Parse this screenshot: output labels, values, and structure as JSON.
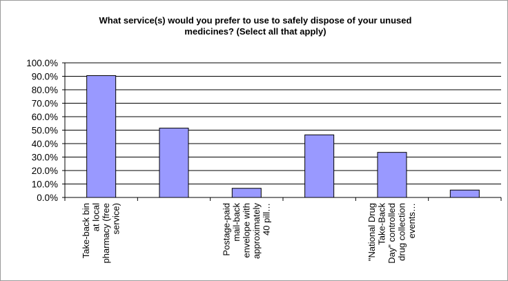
{
  "chart_data": {
    "type": "bar",
    "title": "What service(s) would you prefer to use to safely dispose of your unused medicines? (Select all that apply)",
    "title_lines": [
      "What service(s) would you prefer to use to safely dispose of your unused",
      "medicines? (Select all that apply)"
    ],
    "xlabel": "",
    "ylabel": "",
    "ylim": [
      0,
      100
    ],
    "y_ticks": [
      "0.0%",
      "10.0%",
      "20.0%",
      "30.0%",
      "40.0%",
      "50.0%",
      "60.0%",
      "70.0%",
      "80.0%",
      "90.0%",
      "100.0%"
    ],
    "grid": true,
    "legend": "none",
    "bar_color": "#9999ff",
    "bar_stroke": "#000000",
    "categories": [
      "Take-back bin at local pharmacy (free service)",
      "",
      "Postage-paid mail-back envelope with approximately 40 pill…",
      "",
      "\"National Drug Take-Back Day\" controlled drug collection events…",
      ""
    ],
    "category_label_lines": [
      [
        "Take-back bin",
        "at local",
        "pharmacy (free",
        "service)"
      ],
      [],
      [
        "Postage-paid",
        "mail-back",
        "envelope with",
        "approximately",
        "40 pill…"
      ],
      [],
      [
        "\"National Drug",
        "Take-Back",
        "Day\" controlled",
        "drug collection",
        "events…"
      ],
      []
    ],
    "values": [
      90.5,
      51.5,
      6.8,
      46.5,
      33.5,
      5.5
    ]
  }
}
